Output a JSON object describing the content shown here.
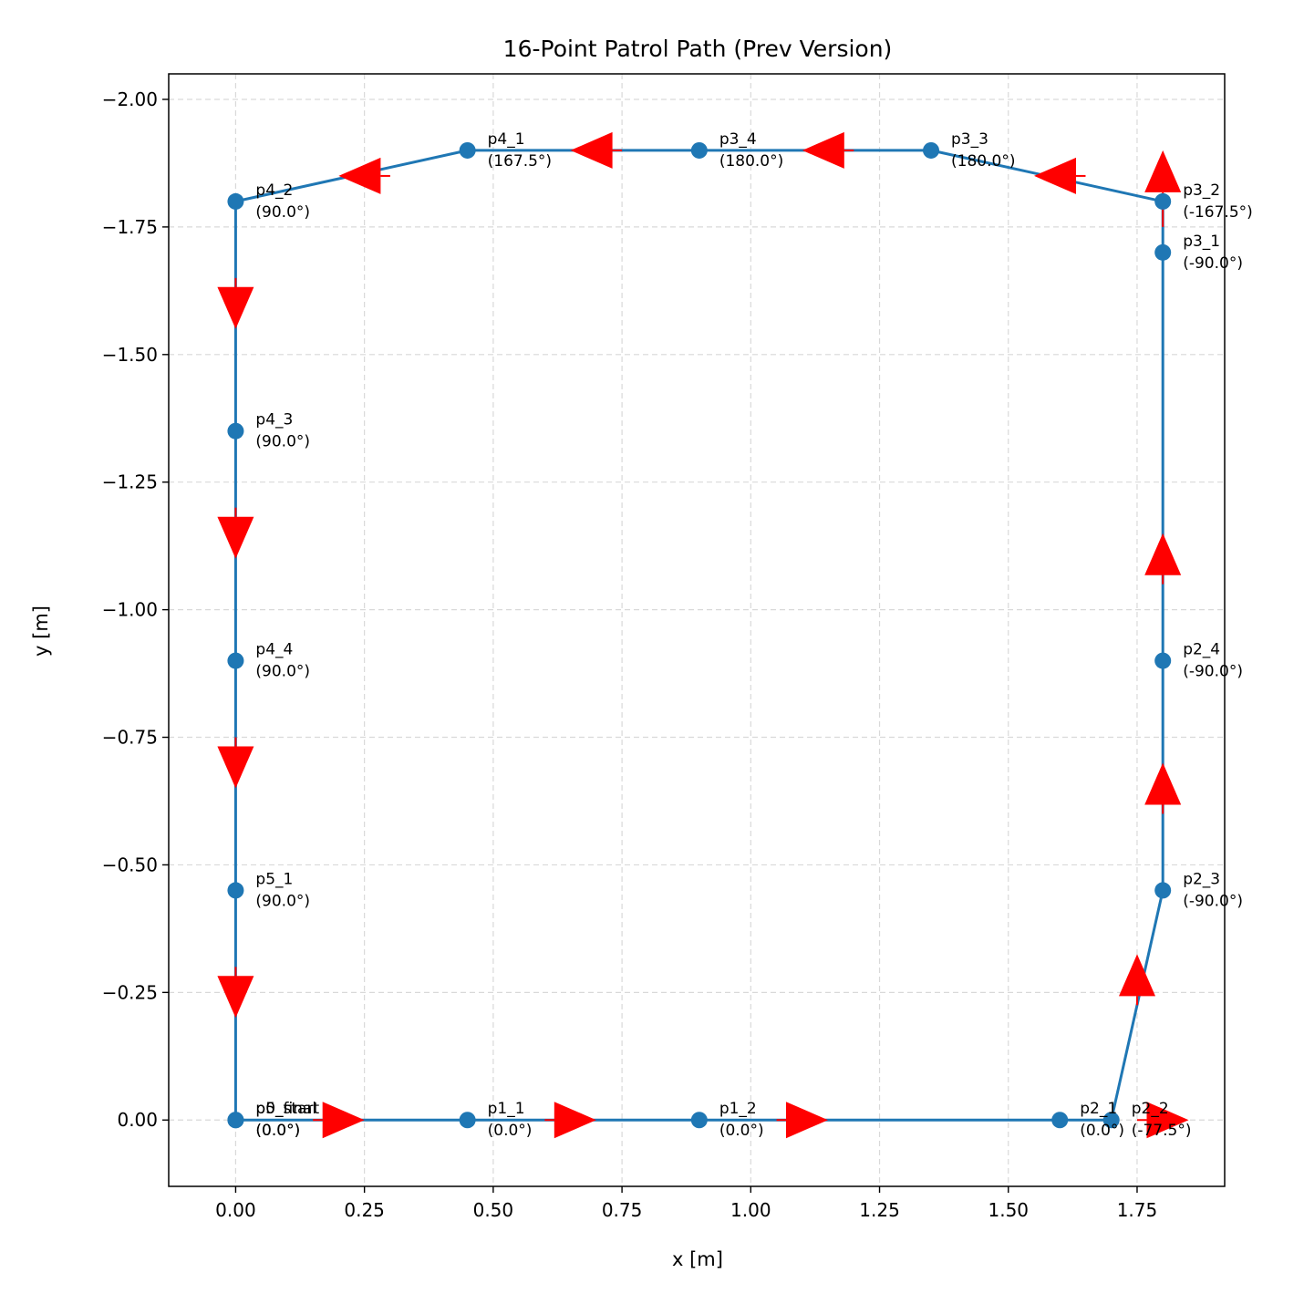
{
  "chart_data": {
    "type": "line",
    "title": "16-Point Patrol Path (Prev Version)",
    "xlabel": "x [m]",
    "ylabel": "y [m]",
    "xlim": [
      -0.13,
      1.92
    ],
    "ylim": [
      0.13,
      -2.05
    ],
    "y_inverted": true,
    "x_ticks": [
      0.0,
      0.25,
      0.5,
      0.75,
      1.0,
      1.25,
      1.5,
      1.75
    ],
    "x_tick_labels": [
      "0.00",
      "0.25",
      "0.50",
      "0.75",
      "1.00",
      "1.25",
      "1.50",
      "1.75"
    ],
    "y_ticks": [
      0.0,
      -0.25,
      -0.5,
      -0.75,
      -1.0,
      -1.25,
      -1.5,
      -1.75,
      -2.0
    ],
    "y_tick_labels": [
      "0.00",
      "−0.25",
      "−0.50",
      "−0.75",
      "−1.00",
      "−1.25",
      "−1.50",
      "−1.75",
      "−2.00"
    ],
    "grid": true,
    "line_color": "#1f77b4",
    "arrow_color": "#ff0000",
    "points": [
      {
        "name": "p0_start",
        "x": 0.0,
        "y": 0.0,
        "angle": "(0.0°)"
      },
      {
        "name": "p1_1",
        "x": 0.45,
        "y": 0.0,
        "angle": "(0.0°)"
      },
      {
        "name": "p1_2",
        "x": 0.9,
        "y": 0.0,
        "angle": "(0.0°)"
      },
      {
        "name": "p2_1",
        "x": 1.6,
        "y": 0.0,
        "angle": "(0.0°)"
      },
      {
        "name": "p2_2",
        "x": 1.7,
        "y": 0.0,
        "angle": "(-77.5°)"
      },
      {
        "name": "p2_3",
        "x": 1.8,
        "y": -0.45,
        "angle": "(-90.0°)"
      },
      {
        "name": "p2_4",
        "x": 1.8,
        "y": -0.9,
        "angle": "(-90.0°)"
      },
      {
        "name": "p3_1",
        "x": 1.8,
        "y": -1.7,
        "angle": "(-90.0°)"
      },
      {
        "name": "p3_2",
        "x": 1.8,
        "y": -1.8,
        "angle": "(-167.5°)"
      },
      {
        "name": "p3_3",
        "x": 1.35,
        "y": -1.9,
        "angle": "(180.0°)"
      },
      {
        "name": "p3_4",
        "x": 0.9,
        "y": -1.9,
        "angle": "(180.0°)"
      },
      {
        "name": "p4_1",
        "x": 0.45,
        "y": -1.9,
        "angle": "(167.5°)"
      },
      {
        "name": "p4_2",
        "x": 0.0,
        "y": -1.8,
        "angle": "(90.0°)"
      },
      {
        "name": "p4_3",
        "x": 0.0,
        "y": -1.35,
        "angle": "(90.0°)"
      },
      {
        "name": "p4_4",
        "x": 0.0,
        "y": -0.9,
        "angle": "(90.0°)"
      },
      {
        "name": "p5_1",
        "x": 0.0,
        "y": -0.45,
        "angle": "(90.0°)"
      },
      {
        "name": "p5_final",
        "x": 0.0,
        "y": 0.0,
        "angle": "(0.0°)"
      }
    ],
    "heading_arrows": [
      {
        "x": 0.15,
        "y": 0.0,
        "dx": 0.1,
        "dy": 0.0
      },
      {
        "x": 0.6,
        "y": 0.0,
        "dx": 0.1,
        "dy": 0.0
      },
      {
        "x": 1.05,
        "y": 0.0,
        "dx": 0.1,
        "dy": 0.0
      },
      {
        "x": 1.75,
        "y": 0.0,
        "dx": 0.1,
        "dy": 0.0
      },
      {
        "x": 1.75,
        "y": -0.225,
        "dx": 0.0,
        "dy": -0.1
      },
      {
        "x": 1.8,
        "y": -0.6,
        "dx": 0.0,
        "dy": -0.1
      },
      {
        "x": 1.8,
        "y": -1.05,
        "dx": 0.0,
        "dy": -0.1
      },
      {
        "x": 1.8,
        "y": -1.75,
        "dx": 0.0,
        "dy": -0.15
      },
      {
        "x": 1.65,
        "y": -1.85,
        "dx": -0.1,
        "dy": 0.0
      },
      {
        "x": 1.2,
        "y": -1.9,
        "dx": -0.1,
        "dy": 0.0
      },
      {
        "x": 0.75,
        "y": -1.9,
        "dx": -0.1,
        "dy": 0.0
      },
      {
        "x": 0.3,
        "y": -1.85,
        "dx": -0.1,
        "dy": 0.0
      },
      {
        "x": 0.0,
        "y": -1.65,
        "dx": 0.0,
        "dy": 0.1
      },
      {
        "x": 0.0,
        "y": -1.2,
        "dx": 0.0,
        "dy": 0.1
      },
      {
        "x": 0.0,
        "y": -0.75,
        "dx": 0.0,
        "dy": 0.1
      },
      {
        "x": 0.0,
        "y": -0.3,
        "dx": 0.0,
        "dy": 0.1
      }
    ]
  }
}
